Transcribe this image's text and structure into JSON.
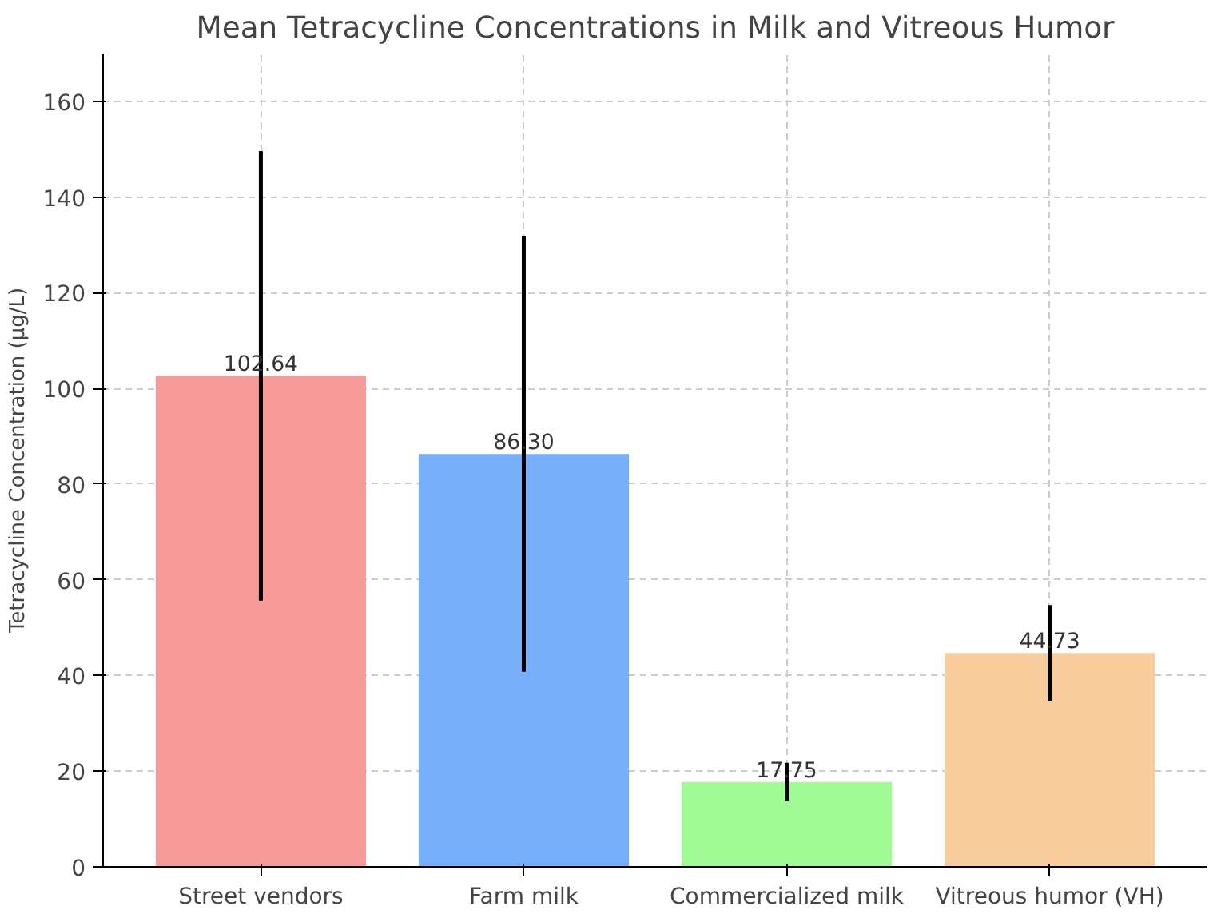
{
  "chart_data": {
    "type": "bar",
    "title": "Mean Tetracycline Concentrations in Milk and Vitreous Humor",
    "ylabel": "Tetracycline Concentration (µg/L)",
    "categories": [
      "Street vendors",
      "Farm milk",
      "Commercialized milk",
      "Vitreous humor (VH)"
    ],
    "values": [
      102.64,
      86.3,
      17.75,
      44.73
    ],
    "value_labels": [
      "102.64",
      "86.30",
      "17.75",
      "44.73"
    ],
    "errors": [
      47,
      45.5,
      4,
      10
    ],
    "colors": [
      "#f69a9a",
      "#77affb",
      "#a0fb94",
      "#f8cc9c"
    ],
    "ylim": [
      0,
      170
    ],
    "yticks": [
      0,
      20,
      40,
      60,
      80,
      100,
      120,
      140,
      160
    ],
    "grid": true
  }
}
